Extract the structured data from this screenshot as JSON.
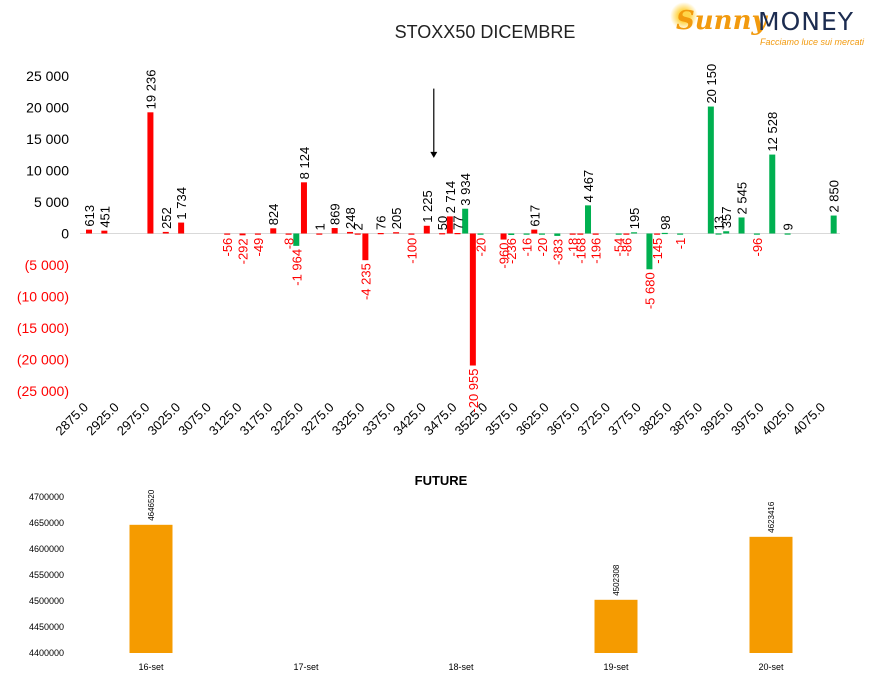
{
  "brand": {
    "sunny": "Sunny",
    "money": "MONEY",
    "tagline": "Facciamo luce sui mercati"
  },
  "chart_data": [
    {
      "type": "bar",
      "title": "STOXX50 DICEMBRE",
      "categories": [
        "2875.0",
        "2925.0",
        "2975.0",
        "3025.0",
        "3075.0",
        "3125.0",
        "3175.0",
        "3225.0",
        "3275.0",
        "3325.0",
        "3375.0",
        "3425.0",
        "3475.0",
        "3525.0",
        "3575.0",
        "3625.0",
        "3675.0",
        "3725.0",
        "3775.0",
        "3825.0",
        "3875.0",
        "3925.0",
        "3975.0",
        "4025.0",
        "4075.0"
      ],
      "ylim": [
        -25000,
        25000
      ],
      "yticks": [
        25000,
        20000,
        15000,
        10000,
        5000,
        0,
        -5000,
        -10000,
        -15000,
        -20000,
        -25000
      ],
      "ytick_labels": [
        "25 000",
        "20 000",
        "15 000",
        "10 000",
        "5 000",
        "0",
        "(5 000)",
        "(10 000)",
        "(15 000)",
        "(20 000)",
        "(25 000)"
      ],
      "colors": {
        "red": "#ff0000",
        "green": "#00b050",
        "neg_label": "#ff0000",
        "pos_label": "#000000"
      },
      "bars": [
        {
          "x": 2875.0,
          "value": 613,
          "label": "613",
          "color": "red"
        },
        {
          "x": 2900.0,
          "value": 451,
          "label": "451",
          "color": "red"
        },
        {
          "x": 2975.0,
          "value": 19236,
          "label": "19 236",
          "color": "red"
        },
        {
          "x": 3000.0,
          "value": 252,
          "label": "252",
          "color": "red"
        },
        {
          "x": 3025.0,
          "value": 1734,
          "label": "1 734",
          "color": "red"
        },
        {
          "x": 3100.0,
          "value": -56,
          "label": "-56",
          "color": "red"
        },
        {
          "x": 3125.0,
          "value": -292,
          "label": "-292",
          "color": "red"
        },
        {
          "x": 3150.0,
          "value": -49,
          "label": "-49",
          "color": "red"
        },
        {
          "x": 3175.0,
          "value": 824,
          "label": "824",
          "color": "red"
        },
        {
          "x": 3200.0,
          "value": -8,
          "label": "-8",
          "color": "red"
        },
        {
          "x": 3212.5,
          "value": -1964,
          "label": "-1 964",
          "color": "green"
        },
        {
          "x": 3225.0,
          "value": 8124,
          "label": "8 124",
          "color": "red"
        },
        {
          "x": 3250.0,
          "value": 1,
          "label": "1",
          "color": "red"
        },
        {
          "x": 3275.0,
          "value": 869,
          "label": "869",
          "color": "red"
        },
        {
          "x": 3300.0,
          "value": 248,
          "label": "248",
          "color": "red"
        },
        {
          "x": 3312.5,
          "value": 2,
          "label": "2",
          "color": "red"
        },
        {
          "x": 3325.0,
          "value": -4235,
          "label": "-4 235",
          "color": "red"
        },
        {
          "x": 3350.0,
          "value": 76,
          "label": "76",
          "color": "red"
        },
        {
          "x": 3375.0,
          "value": 205,
          "label": "205",
          "color": "red"
        },
        {
          "x": 3400.0,
          "value": -100,
          "label": "-100",
          "color": "red"
        },
        {
          "x": 3425.0,
          "value": 1225,
          "label": "1 225",
          "color": "red"
        },
        {
          "x": 3450.0,
          "value": 50,
          "label": "50",
          "color": "red"
        },
        {
          "x": 3462.5,
          "value": 2714,
          "label": "2 714",
          "color": "red"
        },
        {
          "x": 3475.0,
          "value": 77,
          "label": "77",
          "color": "red"
        },
        {
          "x": 3487.5,
          "value": 3934,
          "label": "3 934",
          "color": "green"
        },
        {
          "x": 3500.0,
          "value": -20955,
          "label": "-20 955",
          "color": "red"
        },
        {
          "x": 3512.5,
          "value": -20,
          "label": "-20",
          "color": "green"
        },
        {
          "x": 3550.0,
          "value": -960,
          "label": "-960",
          "color": "red"
        },
        {
          "x": 3562.5,
          "value": -236,
          "label": "-236",
          "color": "green"
        },
        {
          "x": 3587.5,
          "value": -16,
          "label": "-16",
          "color": "green"
        },
        {
          "x": 3600.0,
          "value": 617,
          "label": "617",
          "color": "red"
        },
        {
          "x": 3612.5,
          "value": -20,
          "label": "-20",
          "color": "green"
        },
        {
          "x": 3637.5,
          "value": -383,
          "label": "-383",
          "color": "green"
        },
        {
          "x": 3662.5,
          "value": -18,
          "label": "-18",
          "color": "red"
        },
        {
          "x": 3675.0,
          "value": -168,
          "label": "-168",
          "color": "red"
        },
        {
          "x": 3687.5,
          "value": 4467,
          "label": "4 467",
          "color": "green"
        },
        {
          "x": 3700.0,
          "value": -196,
          "label": "-196",
          "color": "red"
        },
        {
          "x": 3737.5,
          "value": -54,
          "label": "-54",
          "color": "green"
        },
        {
          "x": 3750.0,
          "value": -86,
          "label": "-86",
          "color": "red"
        },
        {
          "x": 3762.5,
          "value": 195,
          "label": "195",
          "color": "green"
        },
        {
          "x": 3787.5,
          "value": -5680,
          "label": "-5 680",
          "color": "green"
        },
        {
          "x": 3800.0,
          "value": -145,
          "label": "-145",
          "color": "red"
        },
        {
          "x": 3812.5,
          "value": 98,
          "label": "98",
          "color": "green"
        },
        {
          "x": 3837.5,
          "value": -1,
          "label": "-1",
          "color": "green"
        },
        {
          "x": 3887.5,
          "value": 20150,
          "label": "20 150",
          "color": "green"
        },
        {
          "x": 3900.0,
          "value": 13,
          "label": "13",
          "color": "green"
        },
        {
          "x": 3912.5,
          "value": 357,
          "label": "357",
          "color": "green"
        },
        {
          "x": 3937.5,
          "value": 2545,
          "label": "2 545",
          "color": "green"
        },
        {
          "x": 3962.5,
          "value": -96,
          "label": "-96",
          "color": "green"
        },
        {
          "x": 3987.5,
          "value": 12528,
          "label": "12 528",
          "color": "green"
        },
        {
          "x": 4012.5,
          "value": 9,
          "label": "9",
          "color": "green"
        },
        {
          "x": 4087.5,
          "value": 2850,
          "label": "2 850",
          "color": "green"
        }
      ],
      "annotations": [
        {
          "type": "arrow-down",
          "x": 3425.0,
          "from": 23000,
          "to": 12000
        }
      ]
    },
    {
      "type": "bar",
      "title": "FUTURE",
      "categories": [
        "16-set",
        "17-set",
        "18-set",
        "19-set",
        "20-set"
      ],
      "values": [
        4646520,
        null,
        null,
        4502308,
        4623416
      ],
      "value_labels": [
        "4646520",
        "",
        "",
        "4502308",
        "4623416"
      ],
      "ylim": [
        4400000,
        4700000
      ],
      "yticks": [
        4700000,
        4650000,
        4600000,
        4550000,
        4500000,
        4450000,
        4400000
      ],
      "ytick_labels": [
        "4700000",
        "4650000",
        "4600000",
        "4550000",
        "4500000",
        "4450000",
        "4400000"
      ],
      "color": "#f59b00"
    }
  ]
}
